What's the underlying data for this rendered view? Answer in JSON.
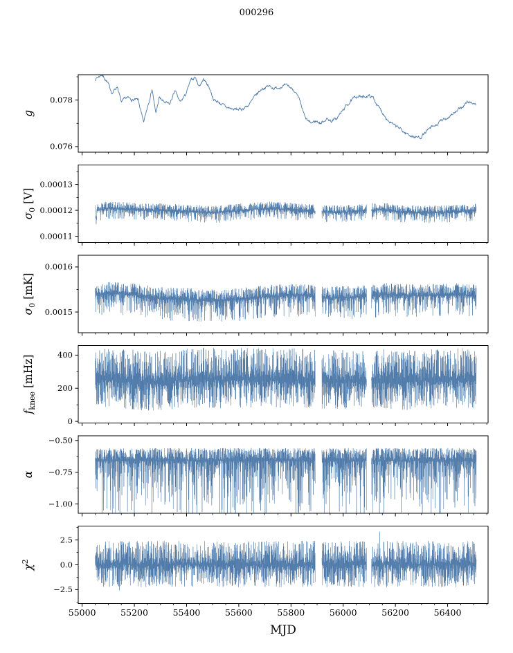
{
  "title": "000296",
  "chart_data": {
    "type": "line",
    "title": "000296",
    "subtitle": "",
    "layout": "6 vertically stacked panels sharing one x axis, grid off, no legend, black box spines",
    "xlabel": "MJD",
    "xlim": [
      54985,
      56555
    ],
    "xticks": [
      {
        "v": 55000,
        "label": "55000"
      },
      {
        "v": 55200,
        "label": "55200"
      },
      {
        "v": 55400,
        "label": "55400"
      },
      {
        "v": 55600,
        "label": "55600"
      },
      {
        "v": 55800,
        "label": "55800"
      },
      {
        "v": 56000,
        "label": "56000"
      },
      {
        "v": 56200,
        "label": "56200"
      },
      {
        "v": 56400,
        "label": "56400"
      }
    ],
    "x_minor_step": 50,
    "line_color": "#4c78a8",
    "data_x_range": [
      55050,
      56510
    ],
    "gaps": [
      [
        55893,
        55918
      ],
      [
        56090,
        56108
      ]
    ],
    "panels": [
      {
        "name": "g",
        "ylabel": [
          {
            "t": "g",
            "i": true
          }
        ],
        "ylim": [
          0.07576,
          0.07909
        ],
        "yticks": [
          {
            "v": 0.078,
            "label": "0.078"
          },
          {
            "v": 0.076,
            "label": "0.076"
          }
        ],
        "series": "curve",
        "seed": 7,
        "noise_amp": 8e-05,
        "curve_points": [
          [
            55050,
            0.0789
          ],
          [
            55075,
            0.0791
          ],
          [
            55095,
            0.0788
          ],
          [
            55115,
            0.0783
          ],
          [
            55135,
            0.0786
          ],
          [
            55150,
            0.0779
          ],
          [
            55170,
            0.0781
          ],
          [
            55195,
            0.078
          ],
          [
            55215,
            0.078
          ],
          [
            55235,
            0.077
          ],
          [
            55250,
            0.0777
          ],
          [
            55268,
            0.0785
          ],
          [
            55282,
            0.0774
          ],
          [
            55295,
            0.0781
          ],
          [
            55315,
            0.0779
          ],
          [
            55335,
            0.0778
          ],
          [
            55355,
            0.0784
          ],
          [
            55375,
            0.0779
          ],
          [
            55395,
            0.0782
          ],
          [
            55415,
            0.0788
          ],
          [
            55432,
            0.079
          ],
          [
            55448,
            0.0786
          ],
          [
            55465,
            0.0789
          ],
          [
            55485,
            0.0786
          ],
          [
            55505,
            0.078
          ],
          [
            55525,
            0.0779
          ],
          [
            55550,
            0.0777
          ],
          [
            55580,
            0.0776
          ],
          [
            55610,
            0.0776
          ],
          [
            55640,
            0.0778
          ],
          [
            55665,
            0.0782
          ],
          [
            55690,
            0.0785
          ],
          [
            55715,
            0.0786
          ],
          [
            55740,
            0.0785
          ],
          [
            55765,
            0.0786
          ],
          [
            55790,
            0.0786
          ],
          [
            55815,
            0.0784
          ],
          [
            55835,
            0.0779
          ],
          [
            55855,
            0.0772
          ],
          [
            55875,
            0.077
          ],
          [
            55895,
            0.0771
          ],
          [
            55915,
            0.077
          ],
          [
            55935,
            0.0772
          ],
          [
            55955,
            0.0771
          ],
          [
            55975,
            0.0772
          ],
          [
            55995,
            0.0775
          ],
          [
            56015,
            0.0778
          ],
          [
            56035,
            0.078
          ],
          [
            56055,
            0.0782
          ],
          [
            56075,
            0.0781
          ],
          [
            56095,
            0.0782
          ],
          [
            56115,
            0.0781
          ],
          [
            56135,
            0.0777
          ],
          [
            56155,
            0.0774
          ],
          [
            56175,
            0.0771
          ],
          [
            56195,
            0.0769
          ],
          [
            56215,
            0.0768
          ],
          [
            56235,
            0.0766
          ],
          [
            56255,
            0.0765
          ],
          [
            56275,
            0.0764
          ],
          [
            56295,
            0.0764
          ],
          [
            56315,
            0.0766
          ],
          [
            56335,
            0.0768
          ],
          [
            56355,
            0.0769
          ],
          [
            56375,
            0.0771
          ],
          [
            56395,
            0.0772
          ],
          [
            56415,
            0.0774
          ],
          [
            56435,
            0.0775
          ],
          [
            56455,
            0.0777
          ],
          [
            56475,
            0.0779
          ],
          [
            56495,
            0.0779
          ],
          [
            56510,
            0.0778
          ]
        ]
      },
      {
        "name": "sigma0-V",
        "ylabel": [
          {
            "t": "σ",
            "i": true
          },
          {
            "t": "0",
            "sub": true
          },
          {
            "t": " [V]"
          }
        ],
        "ylim": [
          0.0001076,
          0.0001375
        ],
        "yticks": [
          {
            "v": 0.00013,
            "label": "0.00013"
          },
          {
            "v": 0.00012,
            "label": "0.00012"
          },
          {
            "v": 0.00011,
            "label": "0.00011"
          }
        ],
        "series": "noise-band",
        "seed": 13,
        "up": {
          "a": 2.8e-06,
          "p": 0.7
        },
        "down": {
          "a": 4e-06,
          "p": 1.6
        },
        "center_points": [
          [
            55050,
            0.00012
          ],
          [
            55053,
            0.000116
          ],
          [
            55058,
            0.00012
          ],
          [
            55100,
            0.0001207
          ],
          [
            55180,
            0.0001203
          ],
          [
            55260,
            0.00012
          ],
          [
            55340,
            0.0001198
          ],
          [
            55420,
            0.0001194
          ],
          [
            55500,
            0.0001191
          ],
          [
            55580,
            0.0001196
          ],
          [
            55660,
            0.0001204
          ],
          [
            55740,
            0.0001206
          ],
          [
            55820,
            0.00012
          ],
          [
            55900,
            0.0001194
          ],
          [
            55980,
            0.0001191
          ],
          [
            56060,
            0.0001196
          ],
          [
            56140,
            0.0001203
          ],
          [
            56220,
            0.0001193
          ],
          [
            56300,
            0.000119
          ],
          [
            56380,
            0.0001192
          ],
          [
            56460,
            0.0001196
          ],
          [
            56510,
            0.0001198
          ]
        ]
      },
      {
        "name": "sigma0-mK",
        "ylabel": [
          {
            "t": "σ",
            "i": true
          },
          {
            "t": "0",
            "sub": true
          },
          {
            "t": " [mK]"
          }
        ],
        "ylim": [
          0.001454,
          0.001626
        ],
        "yticks": [
          {
            "v": 0.0016,
            "label": "0.0016"
          },
          {
            "v": 0.0015,
            "label": "0.0015"
          }
        ],
        "series": "noise-band",
        "seed": 21,
        "up": {
          "a": 2.6e-05,
          "p": 0.7
        },
        "down": {
          "a": 4.8e-05,
          "p": 1.7
        },
        "center_points": [
          [
            55050,
            0.001538
          ],
          [
            55130,
            0.001542
          ],
          [
            55210,
            0.001537
          ],
          [
            55290,
            0.00153
          ],
          [
            55370,
            0.001528
          ],
          [
            55450,
            0.001526
          ],
          [
            55530,
            0.001524
          ],
          [
            55610,
            0.001528
          ],
          [
            55690,
            0.001533
          ],
          [
            55770,
            0.001536
          ],
          [
            55850,
            0.001537
          ],
          [
            55930,
            0.001532
          ],
          [
            56010,
            0.001531
          ],
          [
            56090,
            0.001534
          ],
          [
            56170,
            0.001539
          ],
          [
            56250,
            0.001536
          ],
          [
            56330,
            0.001536
          ],
          [
            56410,
            0.001538
          ],
          [
            56510,
            0.001537
          ]
        ]
      },
      {
        "name": "f-knee",
        "ylabel": [
          {
            "t": "f",
            "i": true
          },
          {
            "t": "knee",
            "sub": true
          },
          {
            "t": " [mHz]"
          }
        ],
        "ylim": [
          -10,
          458
        ],
        "yticks": [
          {
            "v": 400,
            "label": "400"
          },
          {
            "v": 200,
            "label": "200"
          },
          {
            "v": 0,
            "label": "0"
          }
        ],
        "series": "noise-band",
        "seed": 33,
        "up": {
          "a": 190,
          "p": 0.7
        },
        "down": {
          "a": 172,
          "p": 0.85
        },
        "center_points": [
          [
            55050,
            255
          ],
          [
            55150,
            250
          ],
          [
            55250,
            235
          ],
          [
            55350,
            245
          ],
          [
            55450,
            255
          ],
          [
            55550,
            250
          ],
          [
            55650,
            255
          ],
          [
            55750,
            255
          ],
          [
            55850,
            250
          ],
          [
            55950,
            245
          ],
          [
            56050,
            245
          ],
          [
            56150,
            250
          ],
          [
            56250,
            240
          ],
          [
            56350,
            250
          ],
          [
            56450,
            252
          ],
          [
            56510,
            250
          ]
        ]
      },
      {
        "name": "alpha",
        "ylabel": [
          {
            "t": "α",
            "i": true
          }
        ],
        "ylim": [
          -1.073,
          -0.463
        ],
        "yticks": [
          {
            "v": -0.5,
            "label": "−0.50"
          },
          {
            "v": -0.75,
            "label": "−0.75"
          },
          {
            "v": -1.0,
            "label": "−1.00"
          }
        ],
        "series": "noise-band",
        "seed": 47,
        "up": {
          "a": 0.1,
          "p": 0.45
        },
        "down": {
          "a": 0.46,
          "p": 1.9
        },
        "center_points": [
          [
            55050,
            -0.66
          ],
          [
            56510,
            -0.66
          ]
        ]
      },
      {
        "name": "chi2",
        "ylabel": [
          {
            "t": "χ",
            "i": true
          },
          {
            "t": "2",
            "sup": true
          }
        ],
        "ylim": [
          -3.9,
          3.9
        ],
        "yticks": [
          {
            "v": 2.5,
            "label": "2.5"
          },
          {
            "v": 0.0,
            "label": "0.0"
          },
          {
            "v": -2.5,
            "label": "−2.5"
          }
        ],
        "series": "noise-band",
        "seed": 59,
        "up": {
          "a": 2.35,
          "p": 0.8
        },
        "down": {
          "a": 2.3,
          "p": 0.8
        },
        "rare": {
          "prob": 0.0025,
          "mult": 1.45
        },
        "center_points": [
          [
            55050,
            0.05
          ],
          [
            56510,
            0.05
          ]
        ]
      }
    ]
  }
}
